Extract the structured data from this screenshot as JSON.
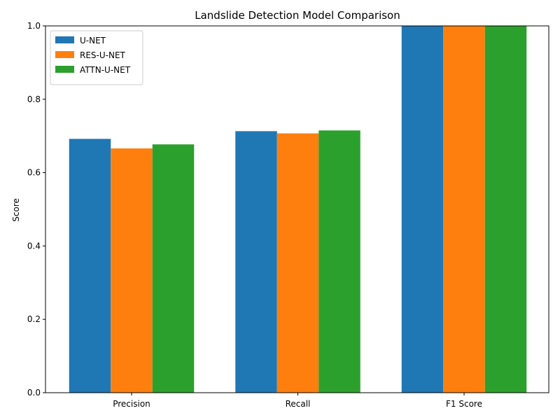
{
  "chart_data": {
    "type": "bar",
    "title": "Landslide Detection Model Comparison",
    "xlabel": "",
    "ylabel": "Score",
    "ylim": [
      0,
      1.0
    ],
    "yticks": [
      "0.0",
      "0.2",
      "0.4",
      "0.6",
      "0.8",
      "1.0"
    ],
    "categories": [
      "Precision",
      "Recall",
      "F1 Score"
    ],
    "series": [
      {
        "name": "U-NET",
        "color": "#1f77b4",
        "values": [
          0.692,
          0.713,
          1.0
        ]
      },
      {
        "name": "RES-U-NET",
        "color": "#ff7f0e",
        "values": [
          0.666,
          0.707,
          1.0
        ]
      },
      {
        "name": "ATTN-U-NET",
        "color": "#2ca02c",
        "values": [
          0.677,
          0.715,
          1.0
        ]
      }
    ],
    "grid": false,
    "legend": "top-left"
  }
}
